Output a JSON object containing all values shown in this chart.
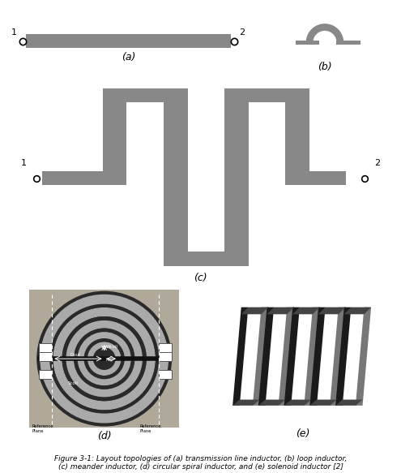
{
  "bg_color": "#ffffff",
  "inductor_color": "#888888",
  "dark_color": "#555555",
  "label_a": "(a)",
  "label_b": "(b)",
  "label_c": "(c)",
  "label_d": "(d)",
  "label_e": "(e)",
  "caption": "Figure 3-1: Layout topologies of (a) transmission line inductor, (b) loop inductor,\n(c) meander inductor, (d) circular spiral inductor, and (e) solenoid inductor [2]",
  "caption_fontsize": 6.5,
  "label_fontsize": 9
}
